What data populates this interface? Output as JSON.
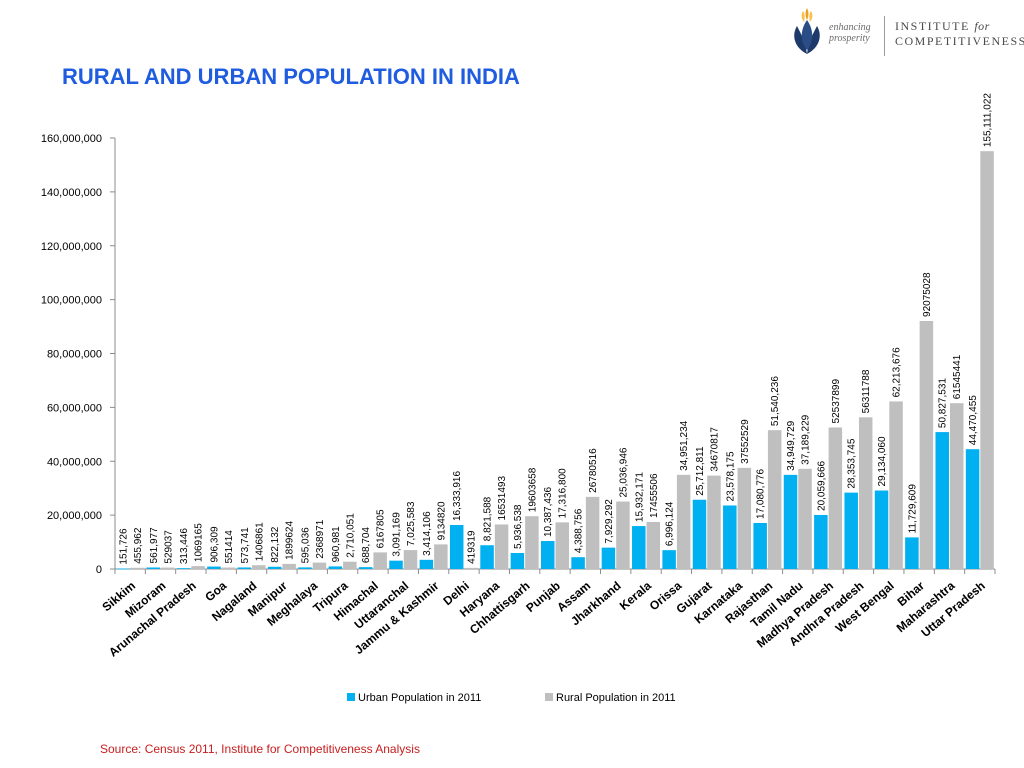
{
  "header": {
    "title": "RURAL AND URBAN POPULATION IN INDIA",
    "logo_tagline_1": "enhancing",
    "logo_tagline_2": "prosperity",
    "logo_name_1": "INSTITUTE",
    "logo_name_2": "for",
    "logo_name_3": "COMPETITIVENESS"
  },
  "footer": {
    "source": "Source: Census 2011, Institute for Competitiveness Analysis"
  },
  "colors": {
    "urban": "#00b0f0",
    "rural": "#bfbfbf",
    "title": "#1f5ce0",
    "source": "#c81e1e"
  },
  "chart_data": {
    "type": "bar",
    "title": "RURAL AND URBAN POPULATION IN INDIA",
    "xlabel": "",
    "ylabel": "",
    "ylim": [
      0,
      160000000
    ],
    "yticks": [
      "0",
      "20,000,000",
      "40,000,000",
      "60,000,000",
      "80,000,000",
      "100,000,000",
      "120,000,000",
      "140,000,000",
      "160,000,000"
    ],
    "legend_position": "bottom",
    "categories": [
      "Sikkim",
      "Mizoram",
      "Arunachal Pradesh",
      "Goa",
      "Nagaland",
      "Manipur",
      "Meghalaya",
      "Tripura",
      "Himachal",
      "Uttaranchal",
      "Jammu & Kashmir",
      "Delhi",
      "Haryana",
      "Chhattisgarh",
      "Punjab",
      "Assam",
      "Jharkhand",
      "Kerala",
      "Orissa",
      "Gujarat",
      "Karnataka",
      "Rajasthan",
      "Tamil Nadu",
      "Madhya Pradesh",
      "Andhra Pradesh",
      "West Bengal",
      "Bihar",
      "Maharashtra",
      "Uttar Pradesh"
    ],
    "series": [
      {
        "name": "Urban Population in 2011",
        "values": [
          151726,
          561977,
          313446,
          906309,
          573741,
          822132,
          595036,
          960981,
          688704,
          3091169,
          3414106,
          16333916,
          8821588,
          5936538,
          10387436,
          4388756,
          7929292,
          15932171,
          6996124,
          25712811,
          23578175,
          17080776,
          34949729,
          20059666,
          28353745,
          29134060,
          11729609,
          50827531,
          44470455
        ],
        "labels": [
          "151,726",
          "561,977",
          "313,446",
          "906,309",
          "573,741",
          "822,132",
          "595,036",
          "960,981",
          "688,704",
          "3,091,169",
          "3,414,106",
          "16,333,916",
          "8,821,588",
          "5,936,538",
          "10,387,436",
          "4,388,756",
          "7,929,292",
          "15,932,171",
          "6,996,124",
          "25,712,811",
          "23,578,175",
          "17,080,776",
          "34,949,729",
          "20,059,666",
          "28,353,745",
          "29,134,060",
          "11,729,609",
          "50,827,531",
          "44,470,455"
        ]
      },
      {
        "name": "Rural Population in 2011",
        "values": [
          455962,
          529037,
          1069165,
          551414,
          1406861,
          1899624,
          2368971,
          2710051,
          6167805,
          7025583,
          9134820,
          419319,
          16531493,
          19603658,
          17316800,
          26780516,
          25036946,
          17455506,
          34951234,
          34670817,
          37552529,
          51540236,
          37189229,
          52537899,
          56311788,
          62213676,
          92075028,
          61545441,
          155111022
        ],
        "labels": [
          "455,962",
          "529037",
          "1069165",
          "551414",
          "1406861",
          "1899624",
          "2368971",
          "2,710,051",
          "6167805",
          "7,025,583",
          "9134820",
          "419319",
          "16531493",
          "19603658",
          "17,316,800",
          "26780516",
          "25,036,946",
          "17455506",
          "34,951,234",
          "34670817",
          "37552529",
          "51,540,236",
          "37,189,229",
          "52537899",
          "56311788",
          "62,213,676",
          "92075028",
          "61545441",
          "155,111,022"
        ]
      }
    ]
  }
}
